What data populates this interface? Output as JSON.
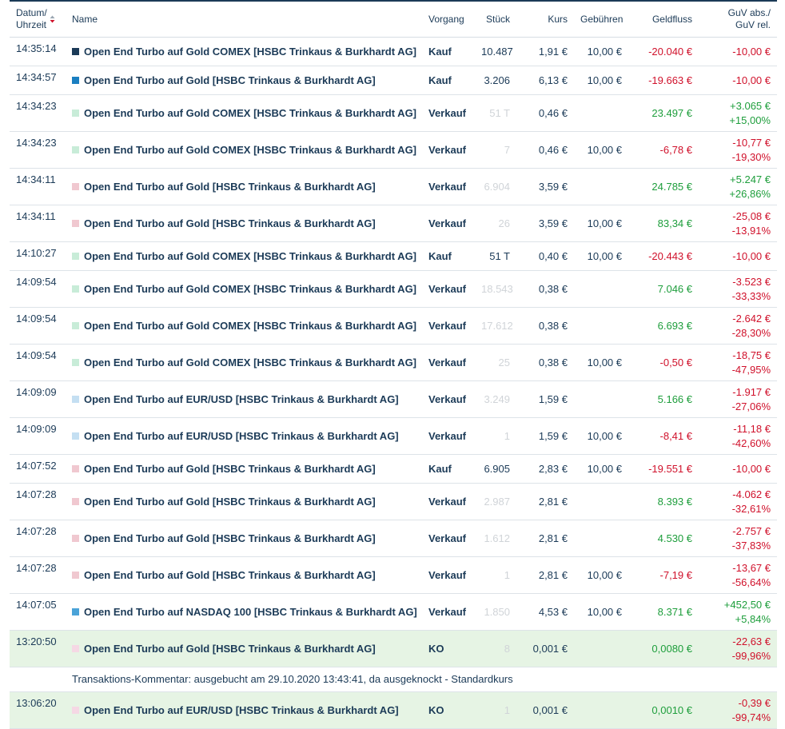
{
  "table": {
    "header": [
      [
        "Datum/",
        "Uhrzeit"
      ],
      [
        "Name"
      ],
      [
        "Vorgang"
      ],
      [
        "Stück"
      ],
      [
        "Kurs"
      ],
      [
        "Gebühren"
      ],
      [
        "Geldfluss"
      ],
      [
        "GuV abs./",
        "GuV rel."
      ]
    ],
    "rows": [
      {
        "time": "14:35:14",
        "color": "#1b3a57",
        "name": "Open End Turbo auf Gold COMEX [HSBC Trinkaus & Burkhardt AG]",
        "vorgang": "Kauf",
        "stueck": "10.487",
        "kurs": "1,91 €",
        "gebuehren": "10,00 €",
        "geldfluss": "-20.040 €",
        "guv_abs": "-10,00 €"
      },
      {
        "time": "14:34:57",
        "color": "#1a7fc1",
        "name": "Open End Turbo auf Gold [HSBC Trinkaus & Burkhardt AG]",
        "vorgang": "Kauf",
        "stueck": "3.206",
        "kurs": "6,13 €",
        "gebuehren": "10,00 €",
        "geldfluss": "-19.663 €",
        "guv_abs": "-10,00 €"
      },
      {
        "time": "14:34:23",
        "color": "#c8ecd8",
        "name": "Open End Turbo auf Gold COMEX [HSBC Trinkaus & Burkhardt AG]",
        "vorgang": "Verkauf",
        "stueck": "51 T",
        "faded": true,
        "kurs": "0,46 €",
        "geldfluss": "23.497 €",
        "guv_abs": "+3.065 €",
        "guv_rel": "+15,00%"
      },
      {
        "time": "14:34:23",
        "color": "#c8ecd8",
        "name": "Open End Turbo auf Gold COMEX [HSBC Trinkaus & Burkhardt AG]",
        "vorgang": "Verkauf",
        "stueck": "7",
        "faded": true,
        "kurs": "0,46 €",
        "gebuehren": "10,00 €",
        "geldfluss": "-6,78 €",
        "guv_abs": "-10,77 €",
        "guv_rel": "-19,30%"
      },
      {
        "time": "14:34:11",
        "color": "#f0c8d0",
        "name": "Open End Turbo auf Gold [HSBC Trinkaus & Burkhardt AG]",
        "vorgang": "Verkauf",
        "stueck": "6.904",
        "faded": true,
        "kurs": "3,59 €",
        "geldfluss": "24.785 €",
        "guv_abs": "+5.247 €",
        "guv_rel": "+26,86%"
      },
      {
        "time": "14:34:11",
        "color": "#f0c8d0",
        "name": "Open End Turbo auf Gold [HSBC Trinkaus & Burkhardt AG]",
        "vorgang": "Verkauf",
        "stueck": "26",
        "faded": true,
        "kurs": "3,59 €",
        "gebuehren": "10,00 €",
        "geldfluss": "83,34 €",
        "guv_abs": "-25,08 €",
        "guv_rel": "-13,91%"
      },
      {
        "time": "14:10:27",
        "color": "#c8ecd8",
        "name": "Open End Turbo auf Gold COMEX [HSBC Trinkaus & Burkhardt AG]",
        "vorgang": "Kauf",
        "stueck": "51 T",
        "kurs": "0,40 €",
        "gebuehren": "10,00 €",
        "geldfluss": "-20.443 €",
        "guv_abs": "-10,00 €"
      },
      {
        "time": "14:09:54",
        "color": "#c8ecd8",
        "name": "Open End Turbo auf Gold COMEX [HSBC Trinkaus & Burkhardt AG]",
        "vorgang": "Verkauf",
        "stueck": "18.543",
        "faded": true,
        "kurs": "0,38 €",
        "geldfluss": "7.046 €",
        "guv_abs": "-3.523 €",
        "guv_rel": "-33,33%"
      },
      {
        "time": "14:09:54",
        "color": "#c8ecd8",
        "name": "Open End Turbo auf Gold COMEX [HSBC Trinkaus & Burkhardt AG]",
        "vorgang": "Verkauf",
        "stueck": "17.612",
        "faded": true,
        "kurs": "0,38 €",
        "geldfluss": "6.693 €",
        "guv_abs": "-2.642 €",
        "guv_rel": "-28,30%"
      },
      {
        "time": "14:09:54",
        "color": "#c8ecd8",
        "name": "Open End Turbo auf Gold COMEX [HSBC Trinkaus & Burkhardt AG]",
        "vorgang": "Verkauf",
        "stueck": "25",
        "faded": true,
        "kurs": "0,38 €",
        "gebuehren": "10,00 €",
        "geldfluss": "-0,50 €",
        "guv_abs": "-18,75 €",
        "guv_rel": "-47,95%"
      },
      {
        "time": "14:09:09",
        "color": "#c4dff2",
        "name": "Open End Turbo auf EUR/USD [HSBC Trinkaus & Burkhardt AG]",
        "vorgang": "Verkauf",
        "stueck": "3.249",
        "faded": true,
        "kurs": "1,59 €",
        "geldfluss": "5.166 €",
        "guv_abs": "-1.917 €",
        "guv_rel": "-27,06%"
      },
      {
        "time": "14:09:09",
        "color": "#c4dff2",
        "name": "Open End Turbo auf EUR/USD [HSBC Trinkaus & Burkhardt AG]",
        "vorgang": "Verkauf",
        "stueck": "1",
        "faded": true,
        "kurs": "1,59 €",
        "gebuehren": "10,00 €",
        "geldfluss": "-8,41 €",
        "guv_abs": "-11,18 €",
        "guv_rel": "-42,60%"
      },
      {
        "time": "14:07:52",
        "color": "#f0c8d0",
        "name": "Open End Turbo auf Gold [HSBC Trinkaus & Burkhardt AG]",
        "vorgang": "Kauf",
        "stueck": "6.905",
        "kurs": "2,83 €",
        "gebuehren": "10,00 €",
        "geldfluss": "-19.551 €",
        "guv_abs": "-10,00 €"
      },
      {
        "time": "14:07:28",
        "color": "#f0c8d0",
        "name": "Open End Turbo auf Gold [HSBC Trinkaus & Burkhardt AG]",
        "vorgang": "Verkauf",
        "stueck": "2.987",
        "faded": true,
        "kurs": "2,81 €",
        "geldfluss": "8.393 €",
        "guv_abs": "-4.062 €",
        "guv_rel": "-32,61%"
      },
      {
        "time": "14:07:28",
        "color": "#f0c8d0",
        "name": "Open End Turbo auf Gold [HSBC Trinkaus & Burkhardt AG]",
        "vorgang": "Verkauf",
        "stueck": "1.612",
        "faded": true,
        "kurs": "2,81 €",
        "geldfluss": "4.530 €",
        "guv_abs": "-2.757 €",
        "guv_rel": "-37,83%"
      },
      {
        "time": "14:07:28",
        "color": "#f0c8d0",
        "name": "Open End Turbo auf Gold [HSBC Trinkaus & Burkhardt AG]",
        "vorgang": "Verkauf",
        "stueck": "1",
        "faded": true,
        "kurs": "2,81 €",
        "gebuehren": "10,00 €",
        "geldfluss": "-7,19 €",
        "guv_abs": "-13,67 €",
        "guv_rel": "-56,64%"
      },
      {
        "time": "14:07:05",
        "color": "#4aa3d8",
        "name": "Open End Turbo auf NASDAQ 100 [HSBC Trinkaus & Burkhardt AG]",
        "vorgang": "Verkauf",
        "stueck": "1.850",
        "faded": true,
        "kurs": "4,53 €",
        "gebuehren": "10,00 €",
        "geldfluss": "8.371 €",
        "guv_abs": "+452,50 €",
        "guv_rel": "+5,84%"
      },
      {
        "time": "13:20:50",
        "color": "#f5d8e4",
        "highlight": "#e6f4e4",
        "name": "Open End Turbo auf Gold [HSBC Trinkaus & Burkhardt AG]",
        "vorgang": "KO",
        "stueck": "8",
        "faded": true,
        "kurs": "0,001 €",
        "geldfluss": "0,0080 €",
        "guv_abs": "-22,63 €",
        "guv_rel": "-99,96%",
        "comment": "Transaktions-Kommentar: ausgebucht am 29.10.2020 13:43:41, da ausgeknockt - Standardkurs"
      },
      {
        "time": "13:06:20",
        "color": "#f5d8e4",
        "highlight": "#e6f4e4",
        "name": "Open End Turbo auf EUR/USD [HSBC Trinkaus & Burkhardt AG]",
        "vorgang": "KO",
        "stueck": "1",
        "faded": true,
        "kurs": "0,001 €",
        "geldfluss": "0,0010 €",
        "guv_abs": "-0,39 €",
        "guv_rel": "-99,74%"
      }
    ]
  }
}
